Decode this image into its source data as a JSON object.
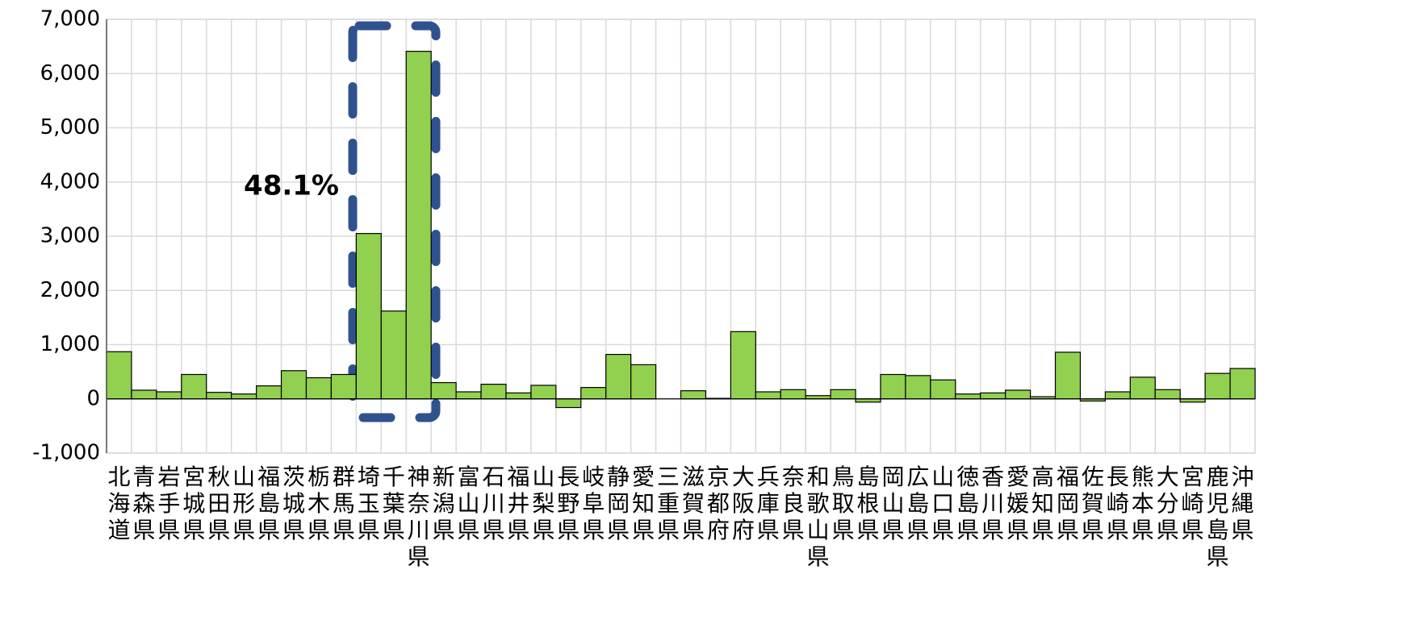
{
  "chart_data": {
    "type": "bar",
    "categories": [
      "北海道",
      "青森県",
      "岩手県",
      "宮城県",
      "秋田県",
      "山形県",
      "福島県",
      "茨城県",
      "栃木県",
      "群馬県",
      "埼玉県",
      "千葉県",
      "神奈川県",
      "新潟県",
      "富山県",
      "石川県",
      "福井県",
      "山梨県",
      "長野県",
      "岐阜県",
      "静岡県",
      "愛知県",
      "三重県",
      "滋賀県",
      "京都府",
      "大阪府",
      "兵庫県",
      "奈良県",
      "和歌山県",
      "鳥取県",
      "島根県",
      "岡山県",
      "広島県",
      "山口県",
      "徳島県",
      "香川県",
      "愛媛県",
      "高知県",
      "福岡県",
      "佐賀県",
      "長崎県",
      "熊本県",
      "大分県",
      "宮崎県",
      "鹿児島県",
      "沖縄県"
    ],
    "values": [
      870,
      160,
      130,
      450,
      120,
      90,
      240,
      520,
      390,
      450,
      3050,
      1620,
      6410,
      300,
      130,
      270,
      110,
      250,
      -160,
      210,
      820,
      630,
      0,
      150,
      10,
      1240,
      130,
      170,
      60,
      170,
      -60,
      450,
      430,
      350,
      90,
      110,
      160,
      40,
      860,
      -40,
      130,
      400,
      170,
      -60,
      470,
      560
    ],
    "color": "#92d050",
    "ylim": [
      -1000,
      7000
    ],
    "yticks": [
      {
        "value": -1000,
        "label": "-1,000"
      },
      0,
      {
        "value": 1000,
        "label": "1,000"
      },
      {
        "value": 2000,
        "label": "2,000"
      },
      {
        "value": 3000,
        "label": "3,000"
      },
      {
        "value": 4000,
        "label": "4,000"
      },
      {
        "value": 5000,
        "label": "5,000"
      },
      {
        "value": 6000,
        "label": "6,000"
      },
      {
        "value": 7000,
        "label": "7,000"
      }
    ],
    "grid": true,
    "annotation": "48.1%"
  }
}
